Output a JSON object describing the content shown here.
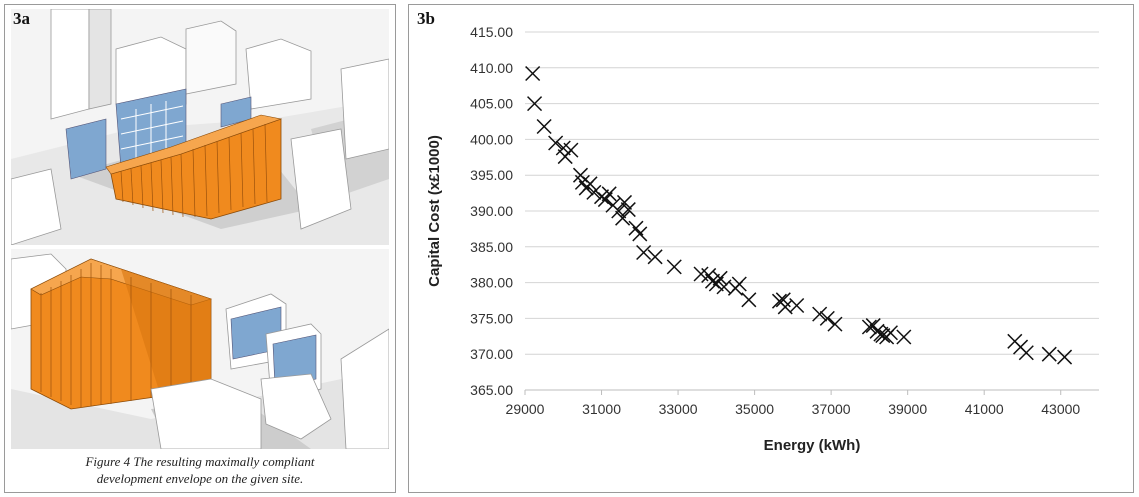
{
  "panel_a": {
    "label": "3a",
    "caption_line1": "Figure 4 The resulting maximally compliant",
    "caption_line2": "development envelope on the given site.",
    "colors": {
      "envelope": "#f08a1e",
      "envelope_dark": "#c96a0e",
      "glass": "#7fa7d0",
      "ground": "#e6e6e6",
      "shadow": "#cfcfcf"
    }
  },
  "panel_b": {
    "label": "3b"
  },
  "chart_data": {
    "type": "scatter",
    "marker": "x",
    "xlabel": "Energy (kWh)",
    "ylabel": "Capital Cost (x£1000)",
    "xlim": [
      29000,
      44000
    ],
    "ylim": [
      365,
      415
    ],
    "xticks": [
      29000,
      31000,
      33000,
      35000,
      37000,
      39000,
      41000,
      43000
    ],
    "yticks": [
      365,
      370,
      375,
      380,
      385,
      390,
      395,
      400,
      405,
      410,
      415
    ],
    "ytick_decimals": 2,
    "grid": "horizontal",
    "series": [
      {
        "points": [
          [
            29200,
            409.2
          ],
          [
            29250,
            405.0
          ],
          [
            29500,
            401.8
          ],
          [
            29800,
            399.5
          ],
          [
            30000,
            398.8
          ],
          [
            30050,
            397.6
          ],
          [
            30200,
            398.5
          ],
          [
            30450,
            395.0
          ],
          [
            30500,
            394.0
          ],
          [
            30600,
            393.2
          ],
          [
            30700,
            393.8
          ],
          [
            30800,
            392.6
          ],
          [
            31000,
            392.0
          ],
          [
            31100,
            391.6
          ],
          [
            31200,
            392.4
          ],
          [
            31300,
            390.8
          ],
          [
            31450,
            390.0
          ],
          [
            31550,
            389.0
          ],
          [
            31600,
            391.2
          ],
          [
            31700,
            390.2
          ],
          [
            31900,
            387.6
          ],
          [
            32000,
            386.8
          ],
          [
            32100,
            384.2
          ],
          [
            32400,
            383.6
          ],
          [
            32900,
            382.2
          ],
          [
            33600,
            381.2
          ],
          [
            33800,
            381.0
          ],
          [
            33900,
            380.2
          ],
          [
            34000,
            379.8
          ],
          [
            34100,
            380.6
          ],
          [
            34200,
            379.4
          ],
          [
            34500,
            379.2
          ],
          [
            34600,
            379.8
          ],
          [
            34850,
            377.6
          ],
          [
            35650,
            377.4
          ],
          [
            35750,
            377.6
          ],
          [
            35800,
            376.6
          ],
          [
            36100,
            376.8
          ],
          [
            36700,
            375.6
          ],
          [
            36900,
            375.0
          ],
          [
            37100,
            374.2
          ],
          [
            38000,
            373.8
          ],
          [
            38100,
            374.0
          ],
          [
            38200,
            373.2
          ],
          [
            38300,
            372.8
          ],
          [
            38350,
            372.6
          ],
          [
            38450,
            372.4
          ],
          [
            38550,
            373.0
          ],
          [
            38900,
            372.4
          ],
          [
            41800,
            371.8
          ],
          [
            41950,
            371.0
          ],
          [
            42100,
            370.2
          ],
          [
            42700,
            370.0
          ],
          [
            43100,
            369.6
          ]
        ]
      }
    ]
  }
}
